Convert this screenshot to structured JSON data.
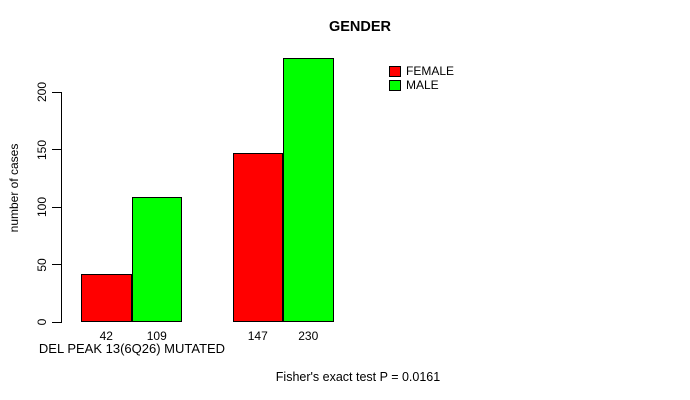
{
  "chart_data": {
    "type": "bar",
    "title": "GENDER",
    "ylabel": "number of cases",
    "xlabel": "",
    "categories": [
      "DEL PEAK 13(6Q26) MUTATED",
      ""
    ],
    "series": [
      {
        "name": "FEMALE",
        "color": "#FF0000",
        "values": [
          42,
          147
        ]
      },
      {
        "name": "MALE",
        "color": "#00FF00",
        "values": [
          109,
          230
        ]
      }
    ],
    "bar_value_labels": [
      [
        42,
        109
      ],
      [
        147,
        230
      ]
    ],
    "yticks": [
      0,
      50,
      100,
      150,
      200
    ],
    "ylim": [
      0,
      230
    ],
    "grid": false,
    "legend_position": "top-right",
    "annotation": "Fisher's exact test P = 0.0161"
  }
}
